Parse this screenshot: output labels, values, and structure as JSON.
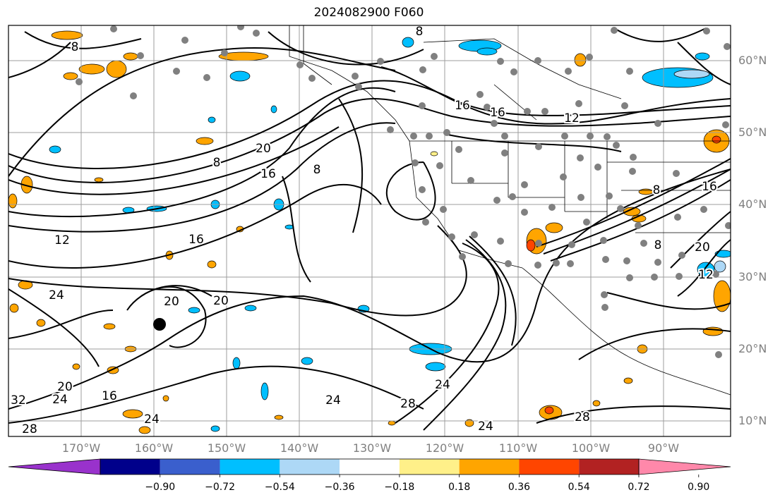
{
  "title": "2024082900 F060",
  "colors": {
    "map_background": "#ffffff",
    "contour": "#000000",
    "grid": "#9e9e9e",
    "border": "#000000",
    "station": "#808080",
    "axis_label": "#808080"
  },
  "lat_labels": [
    "60°N",
    "50°N",
    "40°N",
    "30°N",
    "20°N",
    "10°N"
  ],
  "lon_labels": [
    "170°W",
    "160°W",
    "150°W",
    "140°W",
    "130°W",
    "120°W",
    "110°W",
    "100°W",
    "90°W"
  ],
  "contour_labels": [
    "8",
    "8",
    "8",
    "8",
    "8",
    "8",
    "12",
    "12",
    "12",
    "16",
    "16",
    "16",
    "16",
    "16",
    "16",
    "20",
    "20",
    "20",
    "20",
    "20",
    "24",
    "24",
    "24",
    "24",
    "24",
    "24",
    "28",
    "28",
    "28",
    "32"
  ],
  "colorbar": {
    "segments": [
      "#9932cc",
      "#00008b",
      "#3a5fcd",
      "#00bfff",
      "#add8f6",
      "#ffffff",
      "#fff089",
      "#ffa500",
      "#ff4500",
      "#b22222",
      "#ff88aa"
    ],
    "tick_labels": [
      "−0.90",
      "−0.72",
      "−0.54",
      "−0.36",
      "−0.18",
      "0.18",
      "0.36",
      "0.54",
      "0.72",
      "0.90"
    ]
  }
}
